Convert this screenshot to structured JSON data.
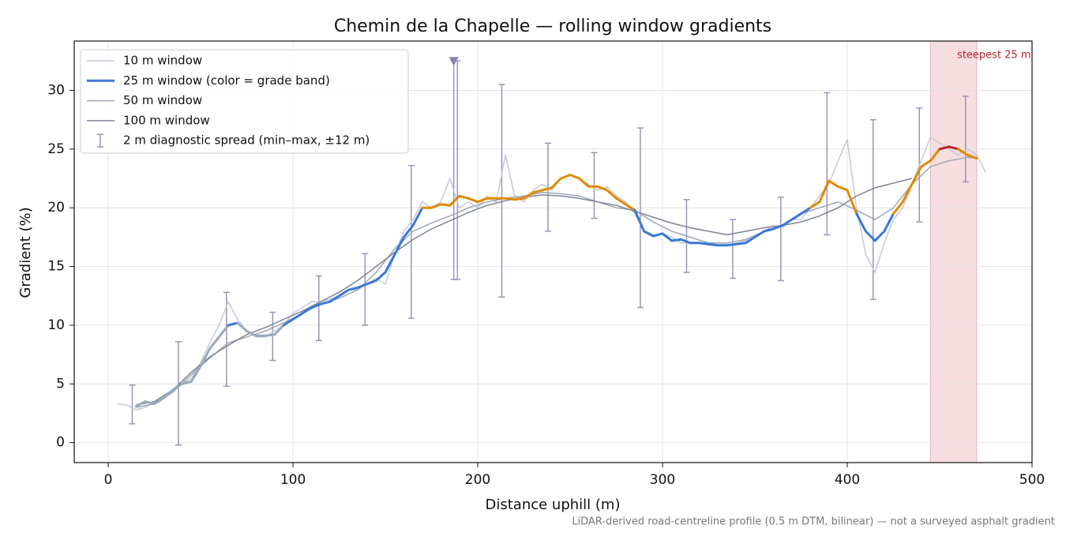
{
  "chart_data": {
    "type": "line",
    "title": "Chemin de la Chapelle — rolling window gradients",
    "xlabel": "Distance uphill (m)",
    "ylabel": "Gradient (%)",
    "footnote": "LiDAR-derived road-centreline profile (0.5 m DTM, bilinear) — not a surveyed asphalt gradient",
    "xlim": [
      -18.4,
      500
    ],
    "ylim": [
      -1.7,
      34.2
    ],
    "xticks": [
      0,
      100,
      200,
      300,
      400,
      500
    ],
    "yticks": [
      0,
      5,
      10,
      15,
      20,
      25,
      30
    ],
    "grid": true,
    "legend": "upper left",
    "highlight": {
      "xlim": [
        445,
        470
      ],
      "label": "steepest 25 m",
      "color": "#e8b4bb",
      "label_color": "#c0202a"
    },
    "series": [
      {
        "name": "10 m window",
        "color": "#c3cad6",
        "width": 1.5,
        "x": [
          5,
          10,
          15,
          20,
          25,
          30,
          35,
          40,
          45,
          50,
          55,
          60,
          65,
          70,
          75,
          80,
          85,
          90,
          95,
          100,
          105,
          110,
          115,
          120,
          125,
          130,
          135,
          140,
          145,
          150,
          155,
          160,
          165,
          170,
          175,
          180,
          185,
          190,
          195,
          200,
          205,
          210,
          215,
          220,
          225,
          230,
          235,
          240,
          245,
          250,
          255,
          260,
          265,
          270,
          275,
          280,
          285,
          290,
          295,
          300,
          305,
          310,
          315,
          320,
          325,
          330,
          335,
          340,
          345,
          350,
          355,
          360,
          365,
          370,
          375,
          380,
          385,
          390,
          395,
          400,
          405,
          410,
          415,
          420,
          425,
          430,
          435,
          440,
          445,
          450,
          455,
          460,
          465,
          470,
          475
        ],
        "values": [
          3.3,
          3.2,
          2.8,
          3.0,
          3.5,
          3.8,
          4.5,
          5.0,
          5.5,
          6.8,
          8.5,
          10,
          12,
          10.5,
          9.5,
          9.0,
          9.0,
          9.5,
          10,
          11,
          11.5,
          12,
          12,
          12.2,
          12.5,
          13,
          13,
          13.5,
          14,
          13.5,
          16,
          18,
          19,
          20.5,
          20,
          20.5,
          22.5,
          20,
          20.5,
          20,
          21,
          20.5,
          24.5,
          21,
          20.5,
          21.5,
          22,
          21.5,
          22.5,
          22.8,
          22.5,
          22,
          21.5,
          21.8,
          21,
          20.5,
          19.5,
          18,
          17.5,
          17.8,
          17.5,
          17,
          17,
          17,
          16.8,
          16.8,
          16.8,
          17,
          17.2,
          17.5,
          18,
          18.5,
          18.3,
          19,
          19,
          20,
          21,
          22,
          24,
          25.8,
          20,
          16,
          14.5,
          17,
          19,
          20,
          22,
          24,
          26,
          25.5,
          25,
          24.5,
          25,
          24.5,
          23
        ]
      },
      {
        "name": "25 m window (color = grade band)",
        "color": "#3a78d6",
        "width": 3,
        "bands": {
          "thresholds": [
            10,
            20,
            25
          ],
          "colors": [
            "#9aa8bc",
            "#3a78d6",
            "#e08a00",
            "#c0202a"
          ]
        },
        "x": [
          15,
          20,
          25,
          30,
          35,
          40,
          45,
          50,
          55,
          60,
          65,
          70,
          75,
          80,
          85,
          90,
          95,
          100,
          105,
          110,
          115,
          120,
          125,
          130,
          135,
          140,
          145,
          150,
          155,
          160,
          165,
          170,
          175,
          180,
          185,
          190,
          195,
          200,
          205,
          210,
          215,
          220,
          225,
          230,
          235,
          240,
          245,
          250,
          255,
          260,
          265,
          270,
          275,
          280,
          285,
          290,
          295,
          300,
          305,
          310,
          315,
          320,
          325,
          330,
          335,
          340,
          345,
          350,
          355,
          360,
          365,
          370,
          375,
          380,
          385,
          390,
          395,
          400,
          405,
          410,
          415,
          420,
          425,
          430,
          435,
          440,
          445,
          450,
          455,
          460,
          465,
          470
        ],
        "values": [
          3.1,
          3.5,
          3.3,
          3.8,
          4.5,
          5.0,
          5.2,
          6.5,
          8.0,
          9.0,
          10.0,
          10.2,
          9.5,
          9.1,
          9.1,
          9.2,
          10,
          10.5,
          11,
          11.5,
          11.8,
          12,
          12.5,
          13,
          13.2,
          13.5,
          13.8,
          14.5,
          16,
          17.5,
          18.5,
          20,
          20,
          20.3,
          20.2,
          21,
          20.8,
          20.5,
          20.8,
          20.8,
          20.8,
          20.7,
          20.8,
          21.3,
          21.5,
          21.7,
          22.5,
          22.8,
          22.5,
          21.8,
          21.8,
          21.5,
          20.8,
          20.3,
          19.8,
          18,
          17.6,
          17.8,
          17.2,
          17.3,
          17,
          17,
          16.9,
          16.8,
          16.8,
          16.9,
          17,
          17.5,
          18,
          18.2,
          18.5,
          19,
          19.5,
          20,
          20.5,
          22.3,
          21.8,
          21.5,
          19.5,
          18,
          17.2,
          18,
          19.5,
          20.5,
          22,
          23.5,
          24,
          25,
          25.2,
          25,
          24.5,
          24.2
        ]
      },
      {
        "name": "50 m window",
        "color": "#9ea6b6",
        "width": 1.5,
        "x": [
          15,
          25,
          35,
          45,
          55,
          65,
          75,
          85,
          95,
          105,
          115,
          125,
          135,
          145,
          155,
          165,
          175,
          185,
          195,
          205,
          215,
          225,
          235,
          245,
          255,
          265,
          275,
          285,
          295,
          305,
          315,
          325,
          335,
          345,
          355,
          365,
          375,
          385,
          395,
          405,
          415,
          425,
          435,
          445,
          455,
          465,
          470
        ],
        "values": [
          3.0,
          3.3,
          4.3,
          5.8,
          7.2,
          8.5,
          9.0,
          9.5,
          10.2,
          11,
          11.8,
          12.3,
          13,
          14.5,
          16.5,
          18,
          18.7,
          19.3,
          20,
          20.5,
          20.8,
          21,
          21.3,
          21.2,
          21,
          20.5,
          20,
          19.8,
          18.8,
          18,
          17.5,
          17,
          17,
          17.3,
          18,
          18.5,
          19.5,
          20,
          20.5,
          19.8,
          19,
          20,
          22,
          23.5,
          24,
          24.3,
          24.2
        ]
      },
      {
        "name": "100 m window",
        "color": "#7d8596",
        "width": 1.5,
        "x": [
          15,
          25,
          35,
          45,
          55,
          65,
          75,
          85,
          95,
          105,
          115,
          125,
          135,
          145,
          155,
          165,
          175,
          185,
          195,
          205,
          215,
          225,
          235,
          245,
          255,
          265,
          275,
          285,
          295,
          305,
          315,
          325,
          335,
          345,
          355,
          365,
          375,
          385,
          395,
          405,
          415,
          425,
          435
        ],
        "values": [
          3.2,
          3.5,
          4.5,
          6,
          7.3,
          8.3,
          9.2,
          9.8,
          10.5,
          11.2,
          12,
          12.8,
          13.8,
          15,
          16.2,
          17.3,
          18.2,
          18.9,
          19.6,
          20.2,
          20.6,
          20.9,
          21.1,
          21,
          20.8,
          20.5,
          20.2,
          19.7,
          19.2,
          18.7,
          18.3,
          18,
          17.7,
          18,
          18.3,
          18.5,
          18.8,
          19.3,
          20,
          21,
          21.7,
          22.1,
          22.5
        ]
      }
    ],
    "spread": {
      "name": "2 m diagnostic spread (min–max, ±12 m)",
      "color": "#9b93bd",
      "x": [
        13,
        38,
        64,
        89,
        114,
        139,
        164,
        187,
        189,
        213,
        238,
        263,
        288,
        313,
        338,
        364,
        389,
        414,
        439,
        464
      ],
      "min": [
        1.6,
        -0.2,
        4.8,
        7,
        8.7,
        10,
        10.6,
        13.9,
        13.9,
        12.4,
        18,
        19.1,
        11.5,
        14.5,
        14,
        13.8,
        17.7,
        12.2,
        18.8,
        22.2
      ],
      "max": [
        4.9,
        8.6,
        12.8,
        11.1,
        14.2,
        16.1,
        23.6,
        32.5,
        32.5,
        30.5,
        25.5,
        24.7,
        26.8,
        20.7,
        19,
        20.9,
        29.8,
        27.5,
        28.5,
        29.5
      ],
      "clipped": {
        "x": 187,
        "y": 32.5,
        "color": "#8a7fb0"
      }
    }
  }
}
